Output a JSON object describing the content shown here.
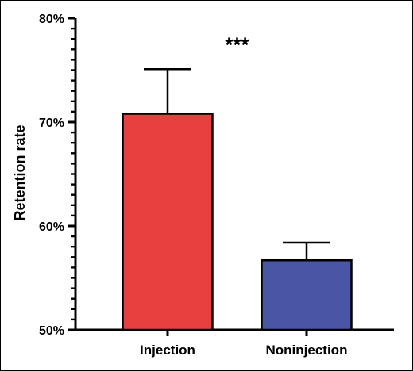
{
  "chart_data": {
    "type": "bar",
    "categories": [
      "Injection",
      "Noninjection"
    ],
    "values": [
      70.8,
      56.7
    ],
    "errors": [
      4.3,
      1.7
    ],
    "colors": [
      "#e8403f",
      "#4a56a5"
    ],
    "ylabel": "Retention rate",
    "xlabel": "",
    "ylim": [
      50,
      80
    ],
    "yticks": [
      50,
      60,
      70,
      80
    ],
    "ytick_labels": [
      "50%",
      "60%",
      "70%",
      "80%"
    ],
    "minor_tick_step": 1,
    "annotation": "***",
    "annotation_x_between": [
      0,
      1
    ],
    "annotation_y": 78.5,
    "grid": false,
    "legend": "none"
  }
}
